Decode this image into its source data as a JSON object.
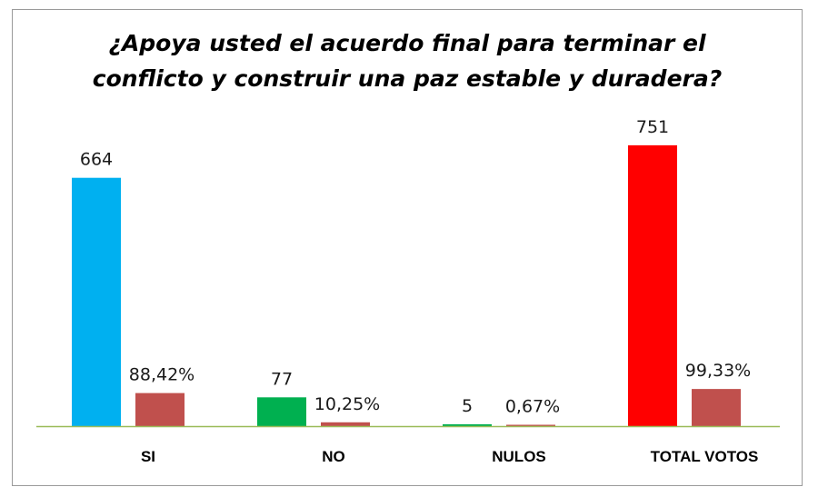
{
  "chart_data": {
    "type": "bar",
    "title_lines": [
      "¿Apoya usted el acuerdo final para terminar el",
      "conflicto y construir una paz estable y duradera?"
    ],
    "categories": [
      "SI",
      "NO",
      "NULOS",
      "TOTAL VOTOS"
    ],
    "series": [
      {
        "values": [
          664,
          77,
          5,
          751
        ],
        "data_labels": [
          "664",
          "77",
          "5",
          "751"
        ],
        "colors": [
          "#00B0F0",
          "#00B050",
          "#00B050",
          "#FF0000"
        ]
      },
      {
        "values": [
          88.42,
          10.25,
          0.67,
          99.33
        ],
        "data_labels": [
          "88,42%",
          "10,25%",
          "0,67%",
          "99,33%"
        ],
        "color": "#C0504D"
      }
    ],
    "ylim": [
      0,
      820
    ],
    "grid": false,
    "legend": "none",
    "axis_color": "#9BBB59"
  }
}
